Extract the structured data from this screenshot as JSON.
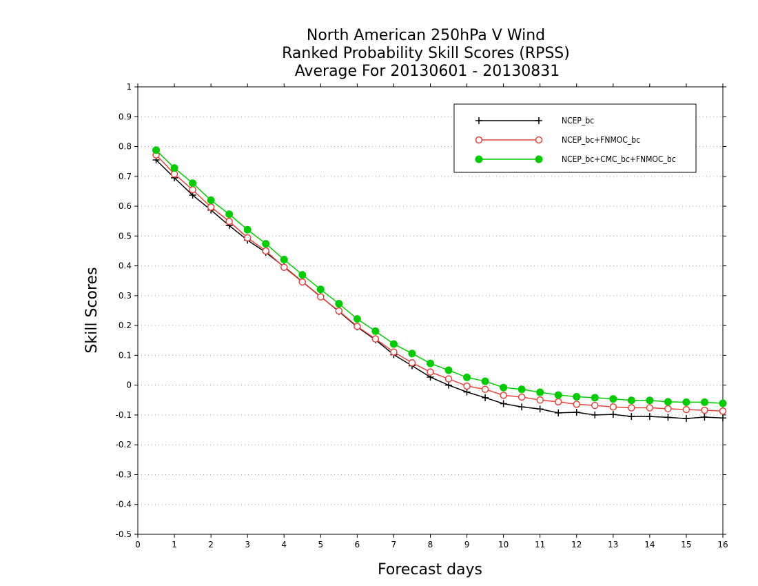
{
  "chart_data": {
    "type": "line",
    "title_lines": [
      "North American 250hPa V Wind",
      "Ranked Probability Skill Scores (RPSS)",
      "Average For 20130601 - 20130831"
    ],
    "xlabel": "Forecast days",
    "ylabel": "Skill Scores",
    "xlim": [
      0,
      16
    ],
    "ylim": [
      -0.5,
      1
    ],
    "xticks": [
      0,
      1,
      2,
      3,
      4,
      5,
      6,
      7,
      8,
      9,
      10,
      11,
      12,
      13,
      14,
      15,
      16
    ],
    "yticks": [
      -0.5,
      -0.4,
      -0.3,
      -0.2,
      -0.1,
      0,
      0.1,
      0.2,
      0.3,
      0.4,
      0.5,
      0.6,
      0.7,
      0.8,
      0.9,
      1
    ],
    "ytick_labels": [
      "-0.5",
      "-0.4",
      "-0.3",
      "-0.2",
      "-0.1",
      "0",
      "0.1",
      "0.2",
      "0.3",
      "0.4",
      "0.5",
      "0.6",
      "0.7",
      "0.8",
      "0.9",
      "1"
    ],
    "grid": "dotted",
    "legend_position": "top-right",
    "x": [
      0.5,
      1,
      1.5,
      2,
      2.5,
      3,
      3.5,
      4,
      4.5,
      5,
      5.5,
      6,
      6.5,
      7,
      7.5,
      8,
      8.5,
      9,
      9.5,
      10,
      10.5,
      11,
      11.5,
      12,
      12.5,
      13,
      13.5,
      14,
      14.5,
      15,
      15.5,
      16
    ],
    "series": [
      {
        "name": "NCEP_bc",
        "color": "#000000",
        "marker": "plus",
        "values": [
          0.755,
          0.695,
          0.637,
          0.587,
          0.535,
          0.486,
          0.445,
          0.397,
          0.347,
          0.297,
          0.247,
          0.195,
          0.152,
          0.102,
          0.065,
          0.027,
          0.0,
          -0.023,
          -0.042,
          -0.062,
          -0.073,
          -0.08,
          -0.093,
          -0.091,
          -0.1,
          -0.098,
          -0.105,
          -0.105,
          -0.108,
          -0.112,
          -0.107,
          -0.11
        ]
      },
      {
        "name": "NCEP_bc+FNMOC_bc",
        "color": "#e8423c",
        "marker": "open-circle",
        "values": [
          0.772,
          0.708,
          0.655,
          0.597,
          0.549,
          0.494,
          0.45,
          0.395,
          0.346,
          0.296,
          0.249,
          0.197,
          0.155,
          0.111,
          0.075,
          0.044,
          0.021,
          -0.003,
          -0.014,
          -0.034,
          -0.04,
          -0.05,
          -0.056,
          -0.064,
          -0.068,
          -0.073,
          -0.076,
          -0.076,
          -0.079,
          -0.082,
          -0.084,
          -0.087
        ]
      },
      {
        "name": "NCEP_bc+CMC_bc+FNMOC_bc",
        "color": "#00cc00",
        "marker": "filled-circle",
        "values": [
          0.788,
          0.728,
          0.677,
          0.62,
          0.573,
          0.521,
          0.474,
          0.421,
          0.37,
          0.321,
          0.273,
          0.222,
          0.181,
          0.138,
          0.106,
          0.073,
          0.05,
          0.026,
          0.013,
          -0.008,
          -0.014,
          -0.024,
          -0.033,
          -0.039,
          -0.042,
          -0.046,
          -0.051,
          -0.051,
          -0.056,
          -0.057,
          -0.057,
          -0.061
        ]
      }
    ]
  }
}
